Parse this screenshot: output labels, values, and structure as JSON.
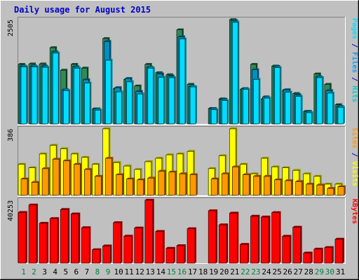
{
  "colors": {
    "background": "#c0c0c0",
    "plot": "#c0c0c0",
    "title": "#0000cc",
    "hits": "#00cccc",
    "files": "#00a0ff",
    "pages": "#00e0ff",
    "hits_bar": "#2e8b57",
    "files_bar": "#0090c0",
    "pages_bar": "#00ddff",
    "visits_bar": "#ff9900",
    "sites_bar": "#ffff00",
    "kbytes_bar": "#ff0000",
    "weekday_label": "#000000",
    "weekend_label": "#008040",
    "separator": "#ffffff"
  },
  "chart_data": {
    "type": "bar",
    "title": "Daily usage for August 2015",
    "categories": [
      "1",
      "2",
      "3",
      "4",
      "5",
      "6",
      "7",
      "8",
      "9",
      "10",
      "11",
      "12",
      "13",
      "14",
      "15",
      "16",
      "17",
      "18",
      "19",
      "20",
      "21",
      "22",
      "23",
      "24",
      "25",
      "26",
      "27",
      "28",
      "29",
      "30",
      "31"
    ],
    "weekend_days": [
      "1",
      "2",
      "8",
      "9",
      "15",
      "16",
      "22",
      "23",
      "29",
      "30"
    ],
    "panels": [
      {
        "id": "hits-files-pages",
        "max_label": "2505",
        "ylim": [
          0,
          2505
        ],
        "side_labels": [
          {
            "text": "Pages",
            "color_key": "pages"
          },
          {
            "text": " / ",
            "color_key": "title"
          },
          {
            "text": "Files",
            "color_key": "files"
          },
          {
            "text": " / ",
            "color_key": "title"
          },
          {
            "text": "Hits",
            "color_key": "hits"
          }
        ],
        "series": [
          {
            "name": "Hits",
            "color_key": "hits_bar",
            "values": [
              1430,
              1440,
              1440,
              1830,
              1290,
              1430,
              1340,
              360,
              2050,
              850,
              1070,
              910,
              1430,
              1230,
              1180,
              2260,
              950,
              null,
              370,
              600,
              2505,
              830,
              1430,
              600,
              1390,
              810,
              730,
              300,
              1200,
              950,
              460
            ]
          },
          {
            "name": "Files",
            "color_key": "files_bar",
            "values": [
              1390,
              1390,
              1390,
              1730,
              820,
              1370,
              1060,
              360,
              1980,
              870,
              1090,
              780,
              1360,
              1200,
              1150,
              2090,
              900,
              null,
              370,
              590,
              2480,
              850,
              1300,
              650,
              1380,
              820,
              700,
              300,
              1130,
              800,
              420
            ]
          },
          {
            "name": "Pages",
            "color_key": "pages_bar",
            "values": [
              1370,
              1370,
              1360,
              1700,
              800,
              1340,
              980,
              330,
              1530,
              770,
              1010,
              720,
              1340,
              1120,
              1110,
              2040,
              890,
              null,
              340,
              560,
              2440,
              830,
              1070,
              620,
              1350,
              760,
              660,
              270,
              1110,
              740,
              400
            ]
          }
        ]
      },
      {
        "id": "visits-sites",
        "max_label": "386",
        "ylim": [
          0,
          386
        ],
        "side_labels": [
          {
            "text": "Sites",
            "color_key": "visits_bar"
          },
          {
            "text": " / ",
            "color_key": "title"
          },
          {
            "text": "Visits",
            "color_key": "sites_bar"
          }
        ],
        "series": [
          {
            "name": "Visits",
            "color_key": "sites_bar",
            "values": [
              180,
              160,
              240,
              290,
              270,
              240,
              220,
              180,
              386,
              190,
              170,
              150,
              195,
              215,
              235,
              240,
              255,
              null,
              155,
              230,
              386,
              180,
              125,
              215,
              165,
              160,
              145,
              125,
              110,
              65,
              65
            ]
          },
          {
            "name": "Sites",
            "color_key": "visits_bar",
            "values": [
              95,
              75,
              155,
              210,
              200,
              180,
              150,
              110,
              215,
              120,
              95,
              90,
              100,
              140,
              135,
              125,
              120,
              null,
              95,
              125,
              165,
              120,
              110,
              110,
              90,
              85,
              80,
              65,
              60,
              40,
              50
            ]
          }
        ]
      },
      {
        "id": "kbytes",
        "max_label": "40253",
        "ylim": [
          0,
          40253
        ],
        "side_labels": [
          {
            "text": "KBytes",
            "color_key": "kbytes_bar"
          }
        ],
        "series": [
          {
            "name": "KBytes",
            "color_key": "kbytes_bar",
            "values": [
              32400,
              37200,
              25500,
              28500,
              34300,
              31500,
              22700,
              8600,
              11000,
              25900,
              17300,
              22500,
              40253,
              20300,
              9500,
              11200,
              22000,
              null,
              33500,
              24500,
              32000,
              12000,
              30000,
              29500,
              32300,
              17200,
              23000,
              6500,
              9000,
              10000,
              15300
            ]
          }
        ]
      }
    ]
  }
}
